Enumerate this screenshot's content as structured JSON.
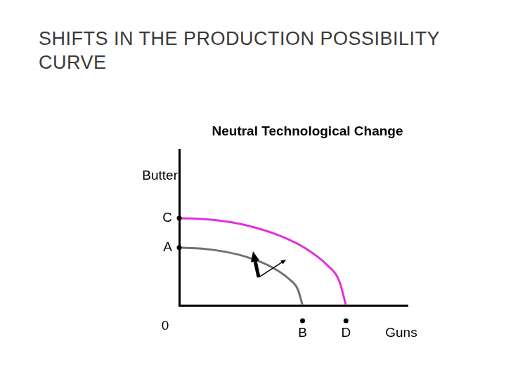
{
  "title": "SHIFTS IN THE PRODUCTION POSSIBILITY CURVE",
  "chart_data": {
    "type": "line",
    "title": "Neutral Technological Change",
    "x_label": "Guns",
    "y_label": "Butter",
    "xlim": [
      0,
      10
    ],
    "ylim": [
      0,
      10
    ],
    "grid": false,
    "tick_labels": false,
    "series": [
      {
        "color": "#707070",
        "x": [
          0,
          1,
          2,
          3,
          4,
          4.8,
          5.2,
          5.4
        ],
        "values": [
          3.7,
          3.64,
          3.44,
          3.08,
          2.49,
          1.7,
          1.0,
          0
        ]
      },
      {
        "color": "#e030e0",
        "x": [
          0,
          1.5,
          3,
          4.5,
          5.5,
          6.5,
          7,
          7.3
        ],
        "values": [
          5.6,
          5.48,
          5.11,
          4.41,
          3.68,
          2.55,
          1.59,
          0
        ]
      }
    ],
    "annotations": [
      {
        "text": "C",
        "x": 0,
        "y": 5.6
      },
      {
        "text": "A",
        "x": 0,
        "y": 3.7
      },
      {
        "text": "0",
        "x": 0,
        "y": 0
      },
      {
        "text": "B",
        "x": 5.4,
        "y": 0
      },
      {
        "text": "D",
        "x": 7.3,
        "y": 0
      }
    ]
  }
}
